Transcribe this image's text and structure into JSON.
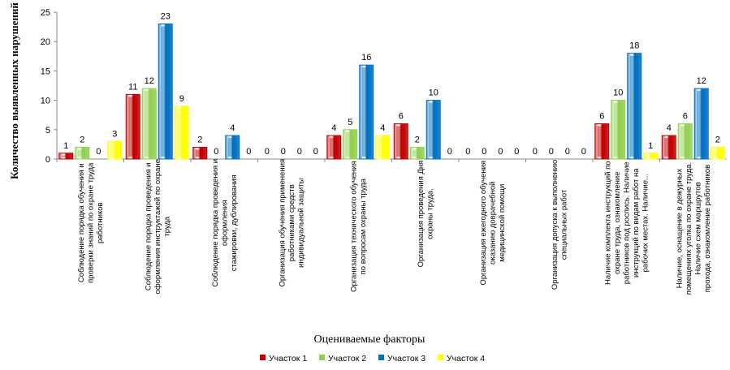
{
  "chart_data": {
    "type": "bar",
    "title": "",
    "xlabel": "Оцениваемые факторы",
    "ylabel": "Количество выявленных нарушений",
    "ylim": [
      0,
      25
    ],
    "yticks": [
      0,
      5,
      10,
      15,
      20,
      25
    ],
    "grid": false,
    "legend_position": "bottom",
    "categories": [
      [
        "Соблюдение порядка обучения и",
        "проверки знаний по охране труда",
        "работников"
      ],
      [
        "Соблюдение порядка проведения и",
        "оформления инструктажей по охране",
        "труда"
      ],
      [
        "Соблюдение порядка проведения и",
        "оформления",
        "стажировки, дублирования"
      ],
      [
        "Организация обучения применения",
        "работниками средств",
        "индивидуальной защиты"
      ],
      [
        "Организация технического обучения",
        "по вопросам охраны труда"
      ],
      [
        "Организация проведения Дня",
        "охраны труда."
      ],
      [
        "Организация ежегодного обучения",
        "оказанию доврачебной",
        "медицинской помощи"
      ],
      [
        "Организация допуска к выполнению",
        "специальных работ"
      ],
      [
        "Наличие комплекта инструкций по",
        "охране труда, ознакомление",
        "работников под роспись. Наличие",
        "инструкций по видам работ на",
        "рабочих местах. Наличие..."
      ],
      [
        "Наличие, оснащение в дежурных",
        "помещениях уголка по охране труда.",
        "Наличие схем маршрутов",
        "прохода, ознакомление работников"
      ]
    ],
    "series": [
      {
        "name": "Участок 1",
        "color": "#c00000",
        "values": [
          1,
          11,
          2,
          0,
          4,
          6,
          0,
          0,
          6,
          4
        ]
      },
      {
        "name": "Участок 2",
        "color": "#92d050",
        "values": [
          2,
          12,
          0,
          0,
          5,
          2,
          0,
          0,
          10,
          6
        ]
      },
      {
        "name": "Участок 3",
        "color": "#0070c0",
        "values": [
          0,
          23,
          4,
          0,
          16,
          10,
          0,
          0,
          18,
          12
        ]
      },
      {
        "name": "Участок 4",
        "color": "#ffff00",
        "values": [
          3,
          9,
          0,
          0,
          4,
          0,
          0,
          0,
          1,
          2
        ]
      }
    ]
  }
}
